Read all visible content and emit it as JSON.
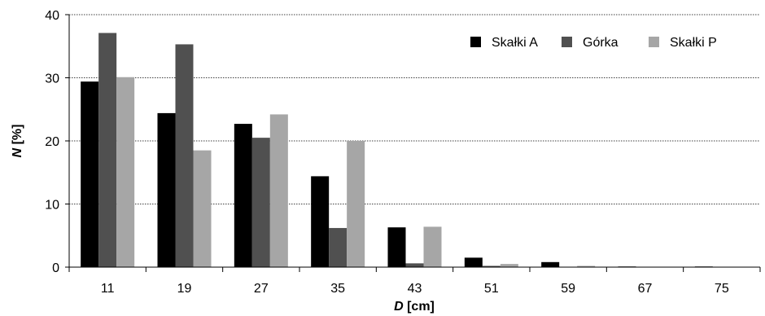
{
  "chart_data": {
    "type": "bar",
    "title": "",
    "xlabel": {
      "var": "D",
      "unit": " [cm]"
    },
    "ylabel": {
      "var": "N",
      "unit": " [%]"
    },
    "categories": [
      "11",
      "19",
      "27",
      "35",
      "43",
      "51",
      "59",
      "67",
      "75"
    ],
    "ylim": [
      0,
      40
    ],
    "yticks": [
      "0",
      "10",
      "20",
      "30",
      "40"
    ],
    "grid": "horizontal dotted",
    "legend_position": "top-right",
    "series": [
      {
        "name": "Skałki A",
        "color": "#000000",
        "values": [
          29.4,
          24.4,
          22.7,
          14.4,
          6.3,
          1.5,
          0.8,
          0.1,
          0.1
        ]
      },
      {
        "name": "Górka",
        "color": "#505050",
        "values": [
          37.1,
          35.3,
          20.5,
          6.2,
          0.6,
          0.2,
          0.0,
          0.0,
          0.0
        ]
      },
      {
        "name": "Skałki P",
        "color": "#a6a6a6",
        "values": [
          30.1,
          18.5,
          24.2,
          20.0,
          6.4,
          0.5,
          0.2,
          0.0,
          0.0
        ]
      }
    ]
  }
}
